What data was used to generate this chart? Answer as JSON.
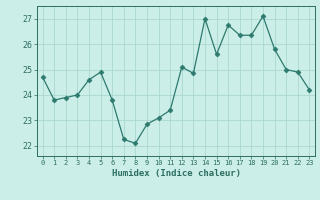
{
  "x": [
    0,
    1,
    2,
    3,
    4,
    5,
    6,
    7,
    8,
    9,
    10,
    11,
    12,
    13,
    14,
    15,
    16,
    17,
    18,
    19,
    20,
    21,
    22,
    23
  ],
  "y": [
    24.7,
    23.8,
    23.9,
    24.0,
    24.6,
    24.9,
    23.8,
    22.25,
    22.1,
    22.85,
    23.1,
    23.4,
    25.1,
    24.85,
    27.0,
    25.6,
    26.75,
    26.35,
    26.35,
    27.1,
    25.8,
    25.0,
    24.9,
    24.2
  ],
  "xlabel": "Humidex (Indice chaleur)",
  "ylabel": "",
  "ylim": [
    21.6,
    27.5
  ],
  "yticks": [
    22,
    23,
    24,
    25,
    26,
    27
  ],
  "xticks": [
    0,
    1,
    2,
    3,
    4,
    5,
    6,
    7,
    8,
    9,
    10,
    11,
    12,
    13,
    14,
    15,
    16,
    17,
    18,
    19,
    20,
    21,
    22,
    23
  ],
  "line_color": "#2d7a6e",
  "marker": "D",
  "marker_size": 2.5,
  "bg_color": "#cceee8",
  "grid_color": "#aad8d0",
  "tick_color": "#2d6e62",
  "label_color": "#2d6e62"
}
